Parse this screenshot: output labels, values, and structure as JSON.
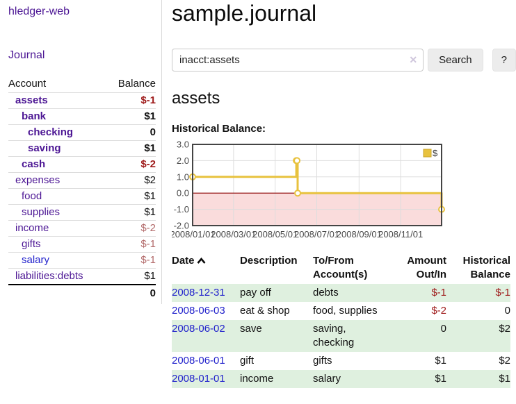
{
  "app_title": "hledger-web",
  "sidebar": {
    "journal_link": "Journal",
    "table": {
      "account_header": "Account",
      "balance_header": "Balance",
      "rows": [
        {
          "name": "assets",
          "depth": 1,
          "bold": true,
          "balance": "$-1",
          "link": "purple"
        },
        {
          "name": "bank",
          "depth": 2,
          "bold": true,
          "balance": "$1",
          "link": "purple"
        },
        {
          "name": "checking",
          "depth": 3,
          "bold": true,
          "balance": "0",
          "link": "purple"
        },
        {
          "name": "saving",
          "depth": 3,
          "bold": true,
          "balance": "$1",
          "link": "purple"
        },
        {
          "name": "cash",
          "depth": 2,
          "bold": true,
          "balance": "$-2",
          "link": "purple"
        },
        {
          "name": "expenses",
          "depth": 1,
          "bold": false,
          "balance": "$2",
          "link": "purple"
        },
        {
          "name": "food",
          "depth": 2,
          "bold": false,
          "balance": "$1",
          "link": "purple"
        },
        {
          "name": "supplies",
          "depth": 2,
          "bold": false,
          "balance": "$1",
          "link": "purple"
        },
        {
          "name": "income",
          "depth": 1,
          "bold": false,
          "balance": "$-2",
          "link": "purple"
        },
        {
          "name": "gifts",
          "depth": 2,
          "bold": false,
          "balance": "$-1",
          "link": "purple"
        },
        {
          "name": "salary",
          "depth": 2,
          "bold": false,
          "balance": "$-1",
          "link": "blue"
        },
        {
          "name": "liabilities:debts",
          "depth": 1,
          "bold": false,
          "balance": "$1",
          "link": "purple"
        }
      ],
      "total": "0"
    }
  },
  "main": {
    "title": "sample.journal",
    "search": {
      "value": "inacct:assets",
      "clear_icon": "✕",
      "search_button": "Search",
      "help_button": "?"
    },
    "account_heading": "assets",
    "chart_label": "Historical Balance:",
    "register": {
      "headers": {
        "date": "Date",
        "description": "Description",
        "tofrom": "To/From Account(s)",
        "amount": "Amount Out/In",
        "balance": "Historical Balance"
      },
      "rows": [
        {
          "date": "2008-12-31",
          "description": "pay off",
          "accounts": "debts",
          "amount": "$-1",
          "balance": "$-1"
        },
        {
          "date": "2008-06-03",
          "description": "eat & shop",
          "accounts": "food, supplies",
          "amount": "$-2",
          "balance": "0"
        },
        {
          "date": "2008-06-02",
          "description": "save",
          "accounts": "saving, checking",
          "amount": "0",
          "balance": "$2"
        },
        {
          "date": "2008-06-01",
          "description": "gift",
          "accounts": "gifts",
          "amount": "$1",
          "balance": "$2"
        },
        {
          "date": "2008-01-01",
          "description": "income",
          "accounts": "salary",
          "amount": "$1",
          "balance": "$1"
        }
      ]
    }
  },
  "chart_data": {
    "type": "line",
    "step": true,
    "title": "Historical Balance:",
    "series": [
      {
        "name": "$",
        "points": [
          [
            "2008-01-01",
            1
          ],
          [
            "2008-06-01",
            2
          ],
          [
            "2008-06-02",
            2
          ],
          [
            "2008-06-03",
            0
          ],
          [
            "2008-12-31",
            -1
          ]
        ]
      }
    ],
    "x_domain": [
      "2008-01-01",
      "2008-12-31"
    ],
    "ylim": [
      -2,
      3
    ],
    "yticks": [
      3.0,
      2.0,
      1.0,
      0.0,
      -1.0,
      -2.0
    ],
    "xticks": [
      {
        "label": "2008/01/01",
        "date": "2008-01-01"
      },
      {
        "label": "2008/03/01",
        "date": "2008-03-01"
      },
      {
        "label": "2008/05/01",
        "date": "2008-05-01"
      },
      {
        "label": "2008/07/01",
        "date": "2008-07-01"
      },
      {
        "label": "2008/09/01",
        "date": "2008-09-01"
      },
      {
        "label": "2008/11/01",
        "date": "2008-11-01"
      }
    ],
    "legend": {
      "label": "$",
      "position": "top-right"
    },
    "grid": true,
    "negative_region_shaded": true
  },
  "colors": {
    "purple_link": "#4c1694",
    "blue_link": "#2222cc",
    "neg_strong": "#9e1a1a",
    "neg_soft": "#b36b6b",
    "row_green": "#dff0df",
    "chart_line": "#e8c23e",
    "chart_line_border": "#c9a42e",
    "negative_fill": "#fadcdc",
    "zero_line": "#8b0000",
    "frame": "#444444",
    "grid": "#dddddd",
    "tick_text": "#4a4a4a",
    "button_bg": "#ececec"
  }
}
